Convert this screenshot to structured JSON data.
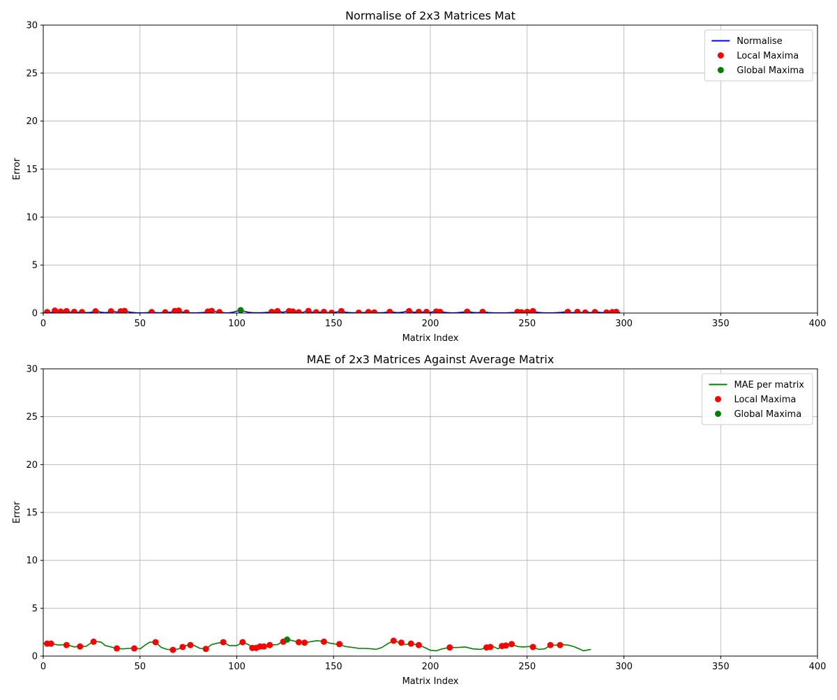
{
  "chart_data": [
    {
      "type": "line",
      "title": "Normalise of 2x3 Matrices Mat",
      "xlabel": "Matrix Index",
      "ylabel": "Error",
      "xlim": [
        0,
        400
      ],
      "ylim": [
        0,
        30
      ],
      "xticks": [
        0,
        50,
        100,
        150,
        200,
        250,
        300,
        350,
        400
      ],
      "yticks": [
        0,
        5,
        10,
        15,
        20,
        25,
        30
      ],
      "grid": true,
      "legend_position": "top-right",
      "series": [
        {
          "name": "Normalise",
          "kind": "line",
          "color": "#0000ff",
          "x": [
            0,
            2,
            4,
            6,
            8,
            10,
            12,
            14,
            16,
            18,
            20,
            22,
            24,
            26,
            28,
            30,
            32,
            34,
            36,
            38,
            40,
            42,
            44,
            46,
            48,
            50,
            52,
            54,
            56,
            58,
            60,
            62,
            64,
            66,
            68,
            70,
            72,
            74,
            76,
            78,
            80,
            82,
            84,
            86,
            88,
            90,
            92,
            94,
            96,
            98,
            100,
            102,
            104,
            106,
            108,
            110,
            112,
            114,
            116,
            118,
            120,
            122,
            124,
            126,
            128,
            130,
            132,
            134,
            136,
            138,
            140,
            142,
            144,
            146,
            148,
            150,
            152,
            154,
            156,
            158,
            160,
            162,
            164,
            166,
            168,
            170,
            172,
            174,
            176,
            178,
            180,
            182,
            184,
            186,
            188,
            190,
            192,
            194,
            196,
            198,
            200,
            202,
            204,
            206,
            208,
            210,
            212,
            214,
            216,
            218,
            220,
            222,
            224,
            226,
            228,
            230,
            232,
            234,
            236,
            238,
            240,
            242,
            244,
            246,
            248,
            250,
            252,
            254,
            256,
            258,
            260,
            262,
            264,
            266,
            268,
            270,
            272,
            274,
            276,
            278,
            280,
            282,
            284,
            286,
            288,
            290,
            292,
            294,
            296,
            298
          ],
          "y": [
            0.02,
            0.08,
            0.05,
            0.25,
            0.12,
            0.15,
            0.2,
            0.1,
            0.12,
            0.06,
            0.1,
            0.04,
            0.06,
            0.12,
            0.18,
            0.08,
            0.04,
            0.08,
            0.18,
            0.1,
            0.18,
            0.22,
            0.12,
            0.06,
            0.03,
            0.02,
            0.02,
            0.05,
            0.1,
            0.05,
            0.03,
            0.05,
            0.04,
            0.1,
            0.22,
            0.25,
            0.1,
            0.05,
            0.02,
            0.02,
            0.03,
            0.05,
            0.08,
            0.15,
            0.22,
            0.1,
            0.05,
            0.02,
            0.03,
            0.08,
            0.2,
            0.3,
            0.18,
            0.08,
            0.04,
            0.03,
            0.03,
            0.05,
            0.08,
            0.12,
            0.2,
            0.15,
            0.08,
            0.2,
            0.15,
            0.12,
            0.08,
            0.05,
            0.22,
            0.12,
            0.08,
            0.06,
            0.12,
            0.06,
            0.03,
            0.05,
            0.12,
            0.2,
            0.1,
            0.05,
            0.03,
            0.03,
            0.04,
            0.06,
            0.1,
            0.08,
            0.04,
            0.03,
            0.05,
            0.1,
            0.12,
            0.06,
            0.05,
            0.1,
            0.2,
            0.14,
            0.08,
            0.12,
            0.1,
            0.12,
            0.08,
            0.15,
            0.12,
            0.12,
            0.06,
            0.03,
            0.02,
            0.04,
            0.08,
            0.12,
            0.14,
            0.06,
            0.04,
            0.06,
            0.12,
            0.05,
            0.03,
            0.02,
            0.02,
            0.02,
            0.03,
            0.05,
            0.06,
            0.12,
            0.08,
            0.12,
            0.2,
            0.12,
            0.06,
            0.03,
            0.02,
            0.02,
            0.03,
            0.05,
            0.08,
            0.12,
            0.06,
            0.05,
            0.1,
            0.04,
            0.08,
            0.06,
            0.04,
            0.1,
            0.06,
            0.04,
            0.08,
            0.1,
            0.12,
            0.05
          ]
        },
        {
          "name": "Local Maxima",
          "kind": "scatter",
          "color": "#ff0000",
          "x": [
            2,
            6,
            9,
            12,
            16,
            20,
            27,
            35,
            40,
            42,
            56,
            63,
            68,
            70,
            74,
            85,
            87,
            91,
            118,
            121,
            127,
            129,
            132,
            137,
            141,
            145,
            149,
            154,
            163,
            168,
            171,
            179,
            189,
            194,
            198,
            203,
            205,
            219,
            227,
            245,
            247,
            250,
            253,
            271,
            276,
            280,
            285,
            291,
            294,
            296
          ],
          "y": [
            0.1,
            0.25,
            0.15,
            0.2,
            0.12,
            0.1,
            0.18,
            0.18,
            0.18,
            0.22,
            0.1,
            0.08,
            0.22,
            0.25,
            0.05,
            0.15,
            0.22,
            0.1,
            0.12,
            0.2,
            0.2,
            0.15,
            0.08,
            0.22,
            0.08,
            0.12,
            0.03,
            0.2,
            0.04,
            0.1,
            0.06,
            0.12,
            0.2,
            0.12,
            0.12,
            0.15,
            0.12,
            0.14,
            0.12,
            0.12,
            0.08,
            0.12,
            0.2,
            0.12,
            0.12,
            0.05,
            0.1,
            0.06,
            0.1,
            0.12
          ]
        },
        {
          "name": "Global Maxima",
          "kind": "scatter",
          "color": "#008000",
          "x": [
            102
          ],
          "y": [
            0.3
          ]
        }
      ]
    },
    {
      "type": "line",
      "title": "MAE of 2x3 Matrices Against Average Matrix",
      "xlabel": "Matrix Index",
      "ylabel": "Error",
      "xlim": [
        0,
        400
      ],
      "ylim": [
        0,
        30
      ],
      "xticks": [
        0,
        50,
        100,
        150,
        200,
        250,
        300,
        350,
        400
      ],
      "yticks": [
        0,
        5,
        10,
        15,
        20,
        25,
        30
      ],
      "grid": true,
      "legend_position": "top-right",
      "series": [
        {
          "name": "MAE per matrix",
          "kind": "line",
          "color": "#008000",
          "x": [
            0,
            2,
            4,
            8,
            12,
            16,
            19,
            22,
            26,
            30,
            32,
            35,
            38,
            41,
            44,
            47,
            50,
            53,
            55,
            58,
            61,
            64,
            67,
            70,
            72,
            75,
            78,
            81,
            84,
            87,
            90,
            93,
            96,
            100,
            103,
            106,
            108,
            110,
            112,
            114,
            117,
            121,
            124,
            127,
            130,
            132,
            135,
            138,
            141,
            145,
            148,
            151,
            153,
            156,
            160,
            163,
            166,
            170,
            172,
            175,
            178,
            181,
            184,
            187,
            190,
            194,
            197,
            200,
            203,
            206,
            210,
            214,
            218,
            222,
            226,
            229,
            231,
            233,
            235,
            237,
            239,
            242,
            245,
            248,
            251,
            253,
            256,
            259,
            262,
            265,
            268,
            271,
            274,
            277,
            279,
            283
          ],
          "y": [
            1.3,
            1.35,
            1.3,
            1.15,
            1.2,
            0.95,
            1.05,
            1.0,
            1.55,
            1.45,
            1.1,
            0.95,
            0.8,
            0.75,
            0.8,
            0.8,
            0.75,
            1.2,
            1.45,
            1.45,
            0.9,
            0.7,
            0.65,
            0.75,
            1.0,
            1.15,
            1.1,
            0.8,
            0.75,
            1.2,
            1.35,
            1.45,
            1.1,
            1.1,
            1.45,
            1.2,
            0.9,
            0.85,
            1.0,
            1.0,
            1.15,
            1.2,
            1.55,
            1.7,
            1.55,
            1.45,
            1.4,
            1.5,
            1.6,
            1.55,
            1.35,
            1.25,
            1.2,
            1.0,
            0.9,
            0.8,
            0.8,
            0.75,
            0.7,
            0.9,
            1.3,
            1.6,
            1.4,
            1.2,
            1.3,
            1.15,
            0.9,
            0.6,
            0.55,
            0.75,
            0.9,
            0.9,
            0.95,
            0.75,
            0.7,
            0.9,
            1.0,
            0.95,
            0.75,
            1.05,
            1.1,
            1.25,
            1.0,
            0.95,
            1.0,
            0.9,
            0.7,
            0.75,
            1.1,
            1.15,
            1.2,
            1.15,
            1.0,
            0.75,
            0.55,
            0.7
          ]
        },
        {
          "name": "Local Maxima",
          "kind": "scatter",
          "color": "#ff0000",
          "x": [
            2,
            4,
            12,
            19,
            26,
            38,
            47,
            58,
            67,
            72,
            76,
            84,
            93,
            103,
            108,
            110,
            112,
            114,
            117,
            124,
            132,
            135,
            145,
            153,
            181,
            185,
            190,
            194,
            210,
            229,
            231,
            237,
            239,
            242,
            253,
            262,
            267
          ],
          "y": [
            1.3,
            1.3,
            1.15,
            1.0,
            1.5,
            0.8,
            0.8,
            1.45,
            0.65,
            0.95,
            1.15,
            0.75,
            1.45,
            1.45,
            0.85,
            0.85,
            1.0,
            1.0,
            1.15,
            1.5,
            1.45,
            1.4,
            1.5,
            1.25,
            1.6,
            1.4,
            1.3,
            1.15,
            0.9,
            0.9,
            0.95,
            1.05,
            1.1,
            1.25,
            0.95,
            1.15,
            1.15
          ]
        },
        {
          "name": "Global Maxima",
          "kind": "scatter",
          "color": "#008000",
          "x": [
            126
          ],
          "y": [
            1.72
          ]
        }
      ]
    }
  ]
}
